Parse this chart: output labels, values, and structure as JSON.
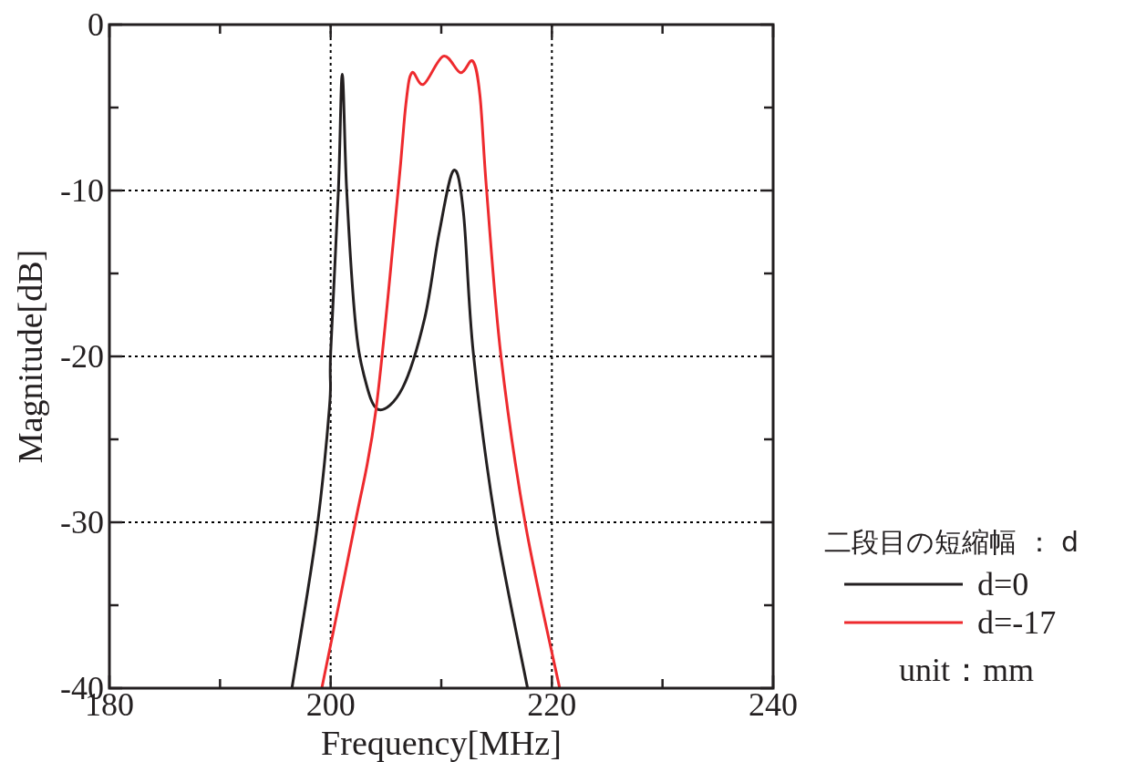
{
  "chart_data": {
    "type": "line",
    "xlabel": "Frequency[MHz]",
    "ylabel": "Magnitude[dB]",
    "legend_title": "二段目の短縮幅 ： d",
    "annotations": [
      "unit：mm"
    ],
    "xlim": [
      180,
      240
    ],
    "ylim": [
      -40,
      0
    ],
    "xticks": [
      180,
      {
        "value": 190,
        "label": null
      },
      200,
      {
        "value": 210,
        "label": null
      },
      220,
      {
        "value": 230,
        "label": null
      },
      240
    ],
    "yticks": [
      -40,
      {
        "value": -35,
        "label": null
      },
      -30,
      {
        "value": -25,
        "label": null
      },
      -20,
      {
        "value": -15,
        "label": null
      },
      -10,
      {
        "value": -5,
        "label": null
      },
      0
    ],
    "grid": true,
    "legend": "right",
    "line_style": "solid",
    "marker": "none",
    "series": [
      {
        "name": "d=0",
        "color": "#231f20",
        "x": [
          196.5,
          198.7,
          199.9,
          200.0,
          200.7,
          201.05,
          201.45,
          202.2,
          203.0,
          204.3,
          206.5,
          208.5,
          209.8,
          211.1,
          212.0,
          212.9,
          214.9,
          217.8
        ],
        "values": [
          -40,
          -30.7,
          -23,
          -19.8,
          -10,
          -3,
          -10,
          -17.7,
          -21.1,
          -23.2,
          -21.9,
          -17.7,
          -12.6,
          -8.8,
          -11.3,
          -19.8,
          -30,
          -40
        ]
      },
      {
        "name": "d=-17",
        "color": "#ee2a2e",
        "x": [
          199.2,
          202.2,
          204.1,
          206.1,
          206.8,
          207.35,
          208.4,
          210.2,
          211.75,
          212.85,
          213.5,
          214.1,
          215.4,
          217.6,
          220.7
        ],
        "values": [
          -40,
          -30.1,
          -23.2,
          -10,
          -4.8,
          -2.9,
          -3.6,
          -1.9,
          -2.9,
          -2.2,
          -4.3,
          -10,
          -20,
          -30.1,
          -40
        ]
      }
    ]
  }
}
